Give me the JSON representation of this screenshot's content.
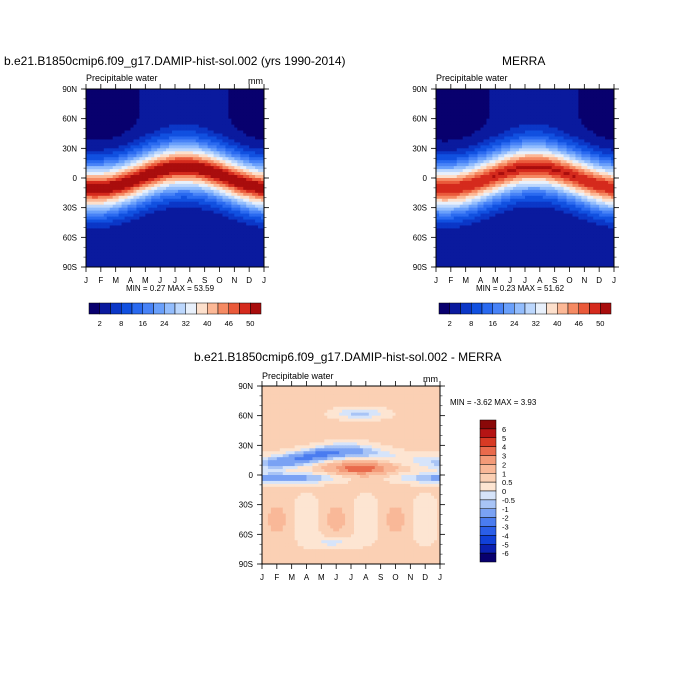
{
  "chart_data": [
    {
      "type": "heatmap",
      "title": "b.e21.B1850cmip6.f09_g17.DAMIP-hist-sol.002 (yrs 1990-2014)",
      "variable": "Precipitable water",
      "units": "mm",
      "x_ticks": [
        "J",
        "F",
        "M",
        "A",
        "M",
        "J",
        "J",
        "A",
        "S",
        "O",
        "N",
        "D",
        "J"
      ],
      "y_ticks": [
        "90N",
        "60N",
        "30N",
        "0",
        "30S",
        "60S",
        "90S"
      ],
      "min_max_text": "MIN =   0.27 MAX =  53.59",
      "min": 0.27,
      "max": 53.59,
      "field": {
        "eq_amp": 50,
        "shift_amp": 11,
        "width": 24,
        "base": 2
      },
      "colorbar": {
        "levels": [
          2,
          5,
          8,
          12,
          16,
          20,
          24,
          28,
          32,
          36,
          40,
          43,
          46,
          48,
          50
        ],
        "labels": [
          "2",
          "8",
          "16",
          "24",
          "32",
          "40",
          "46",
          "50"
        ],
        "colors": [
          "#08006e",
          "#0a1a9e",
          "#0b37c7",
          "#1150e0",
          "#2a6af0",
          "#4883f7",
          "#6aa0fb",
          "#93bdfd",
          "#bcd7fd",
          "#e8f0fb",
          "#fde0cc",
          "#fcb896",
          "#f58a63",
          "#ea5a3b",
          "#d52a1d",
          "#a90d0d"
        ]
      }
    },
    {
      "type": "heatmap",
      "title": "MERRA",
      "variable": "Precipitable water",
      "units": "",
      "x_ticks": [
        "J",
        "F",
        "M",
        "A",
        "M",
        "J",
        "J",
        "A",
        "S",
        "O",
        "N",
        "D",
        "J"
      ],
      "y_ticks": [
        "90N",
        "60N",
        "30N",
        "0",
        "30S",
        "60S",
        "90S"
      ],
      "min_max_text": "MIN =   0.23 MAX =  51.62",
      "min": 0.23,
      "max": 51.62,
      "field": {
        "eq_amp": 48,
        "shift_amp": 11,
        "width": 24,
        "base": 2
      },
      "colorbar": {
        "levels": [
          2,
          5,
          8,
          12,
          16,
          20,
          24,
          28,
          32,
          36,
          40,
          43,
          46,
          48,
          50
        ],
        "labels": [
          "2",
          "8",
          "16",
          "24",
          "32",
          "40",
          "46",
          "50"
        ],
        "colors": [
          "#08006e",
          "#0a1a9e",
          "#0b37c7",
          "#1150e0",
          "#2a6af0",
          "#4883f7",
          "#6aa0fb",
          "#93bdfd",
          "#bcd7fd",
          "#e8f0fb",
          "#fde0cc",
          "#fcb896",
          "#f58a63",
          "#ea5a3b",
          "#d52a1d",
          "#a90d0d"
        ]
      }
    },
    {
      "type": "heatmap",
      "title": "b.e21.B1850cmip6.f09_g17.DAMIP-hist-sol.002 - MERRA",
      "variable": "Precipitable water",
      "units": "mm",
      "x_ticks": [
        "J",
        "F",
        "M",
        "A",
        "M",
        "J",
        "J",
        "A",
        "S",
        "O",
        "N",
        "D",
        "J"
      ],
      "y_ticks": [
        "90N",
        "60N",
        "30N",
        "0",
        "30S",
        "60S",
        "90S"
      ],
      "min_max_text": "MIN =  -3.62 MAX =   3.93",
      "min": -3.62,
      "max": 3.93,
      "colorbar": {
        "levels": [
          -6,
          -5,
          -4,
          -3,
          -2,
          -1,
          -0.5,
          0,
          0.5,
          1,
          2,
          3,
          4,
          5,
          6
        ],
        "labels": [
          "6",
          "5",
          "4",
          "3",
          "2",
          "1",
          "0.5",
          "0",
          "-0.5",
          "-1",
          "-2",
          "-3",
          "-4",
          "-5",
          "-6"
        ],
        "colors": [
          "#08006e",
          "#0b20b0",
          "#1040d8",
          "#2a5ee8",
          "#4a7cf0",
          "#7aa2f4",
          "#a8c4f6",
          "#d6e4fa",
          "#fde5d2",
          "#fbd0b4",
          "#f9b898",
          "#f39a78",
          "#e96a4c",
          "#d73a24",
          "#b51414",
          "#8a0808"
        ]
      }
    }
  ]
}
